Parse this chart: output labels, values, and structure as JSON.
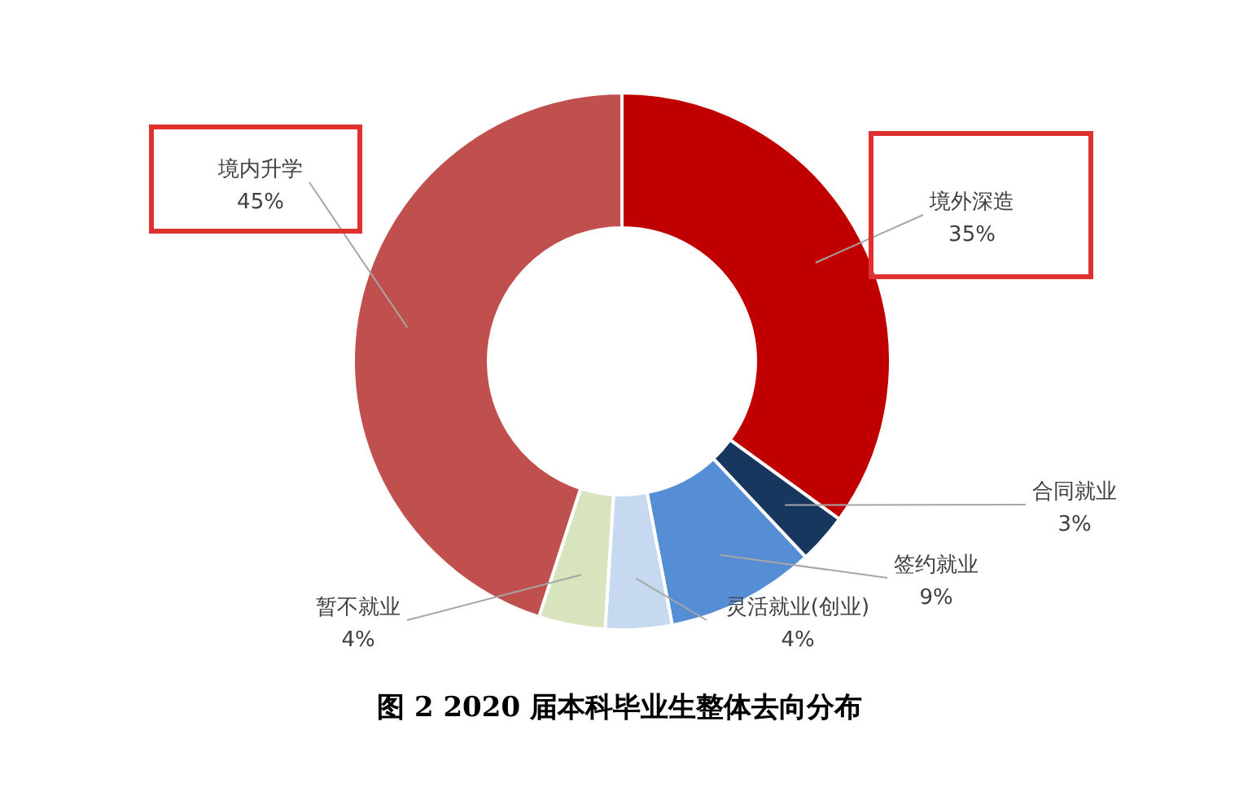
{
  "chart_data": {
    "type": "donut",
    "title": "图 2 2020 届本科毕业生整体去向分布",
    "categories": [
      "境外深造",
      "合同就业",
      "签约就业",
      "灵活就业(创业)",
      "暂不就业",
      "境内升学"
    ],
    "values": [
      35,
      3,
      9,
      4,
      4,
      45
    ],
    "value_labels": [
      "35%",
      "3%",
      "9%",
      "4%",
      "4%",
      "45%"
    ],
    "colors": [
      "#c00000",
      "#17375e",
      "#558ed5",
      "#c6d9f1",
      "#d7e4bd",
      "#c0504d"
    ]
  }
}
